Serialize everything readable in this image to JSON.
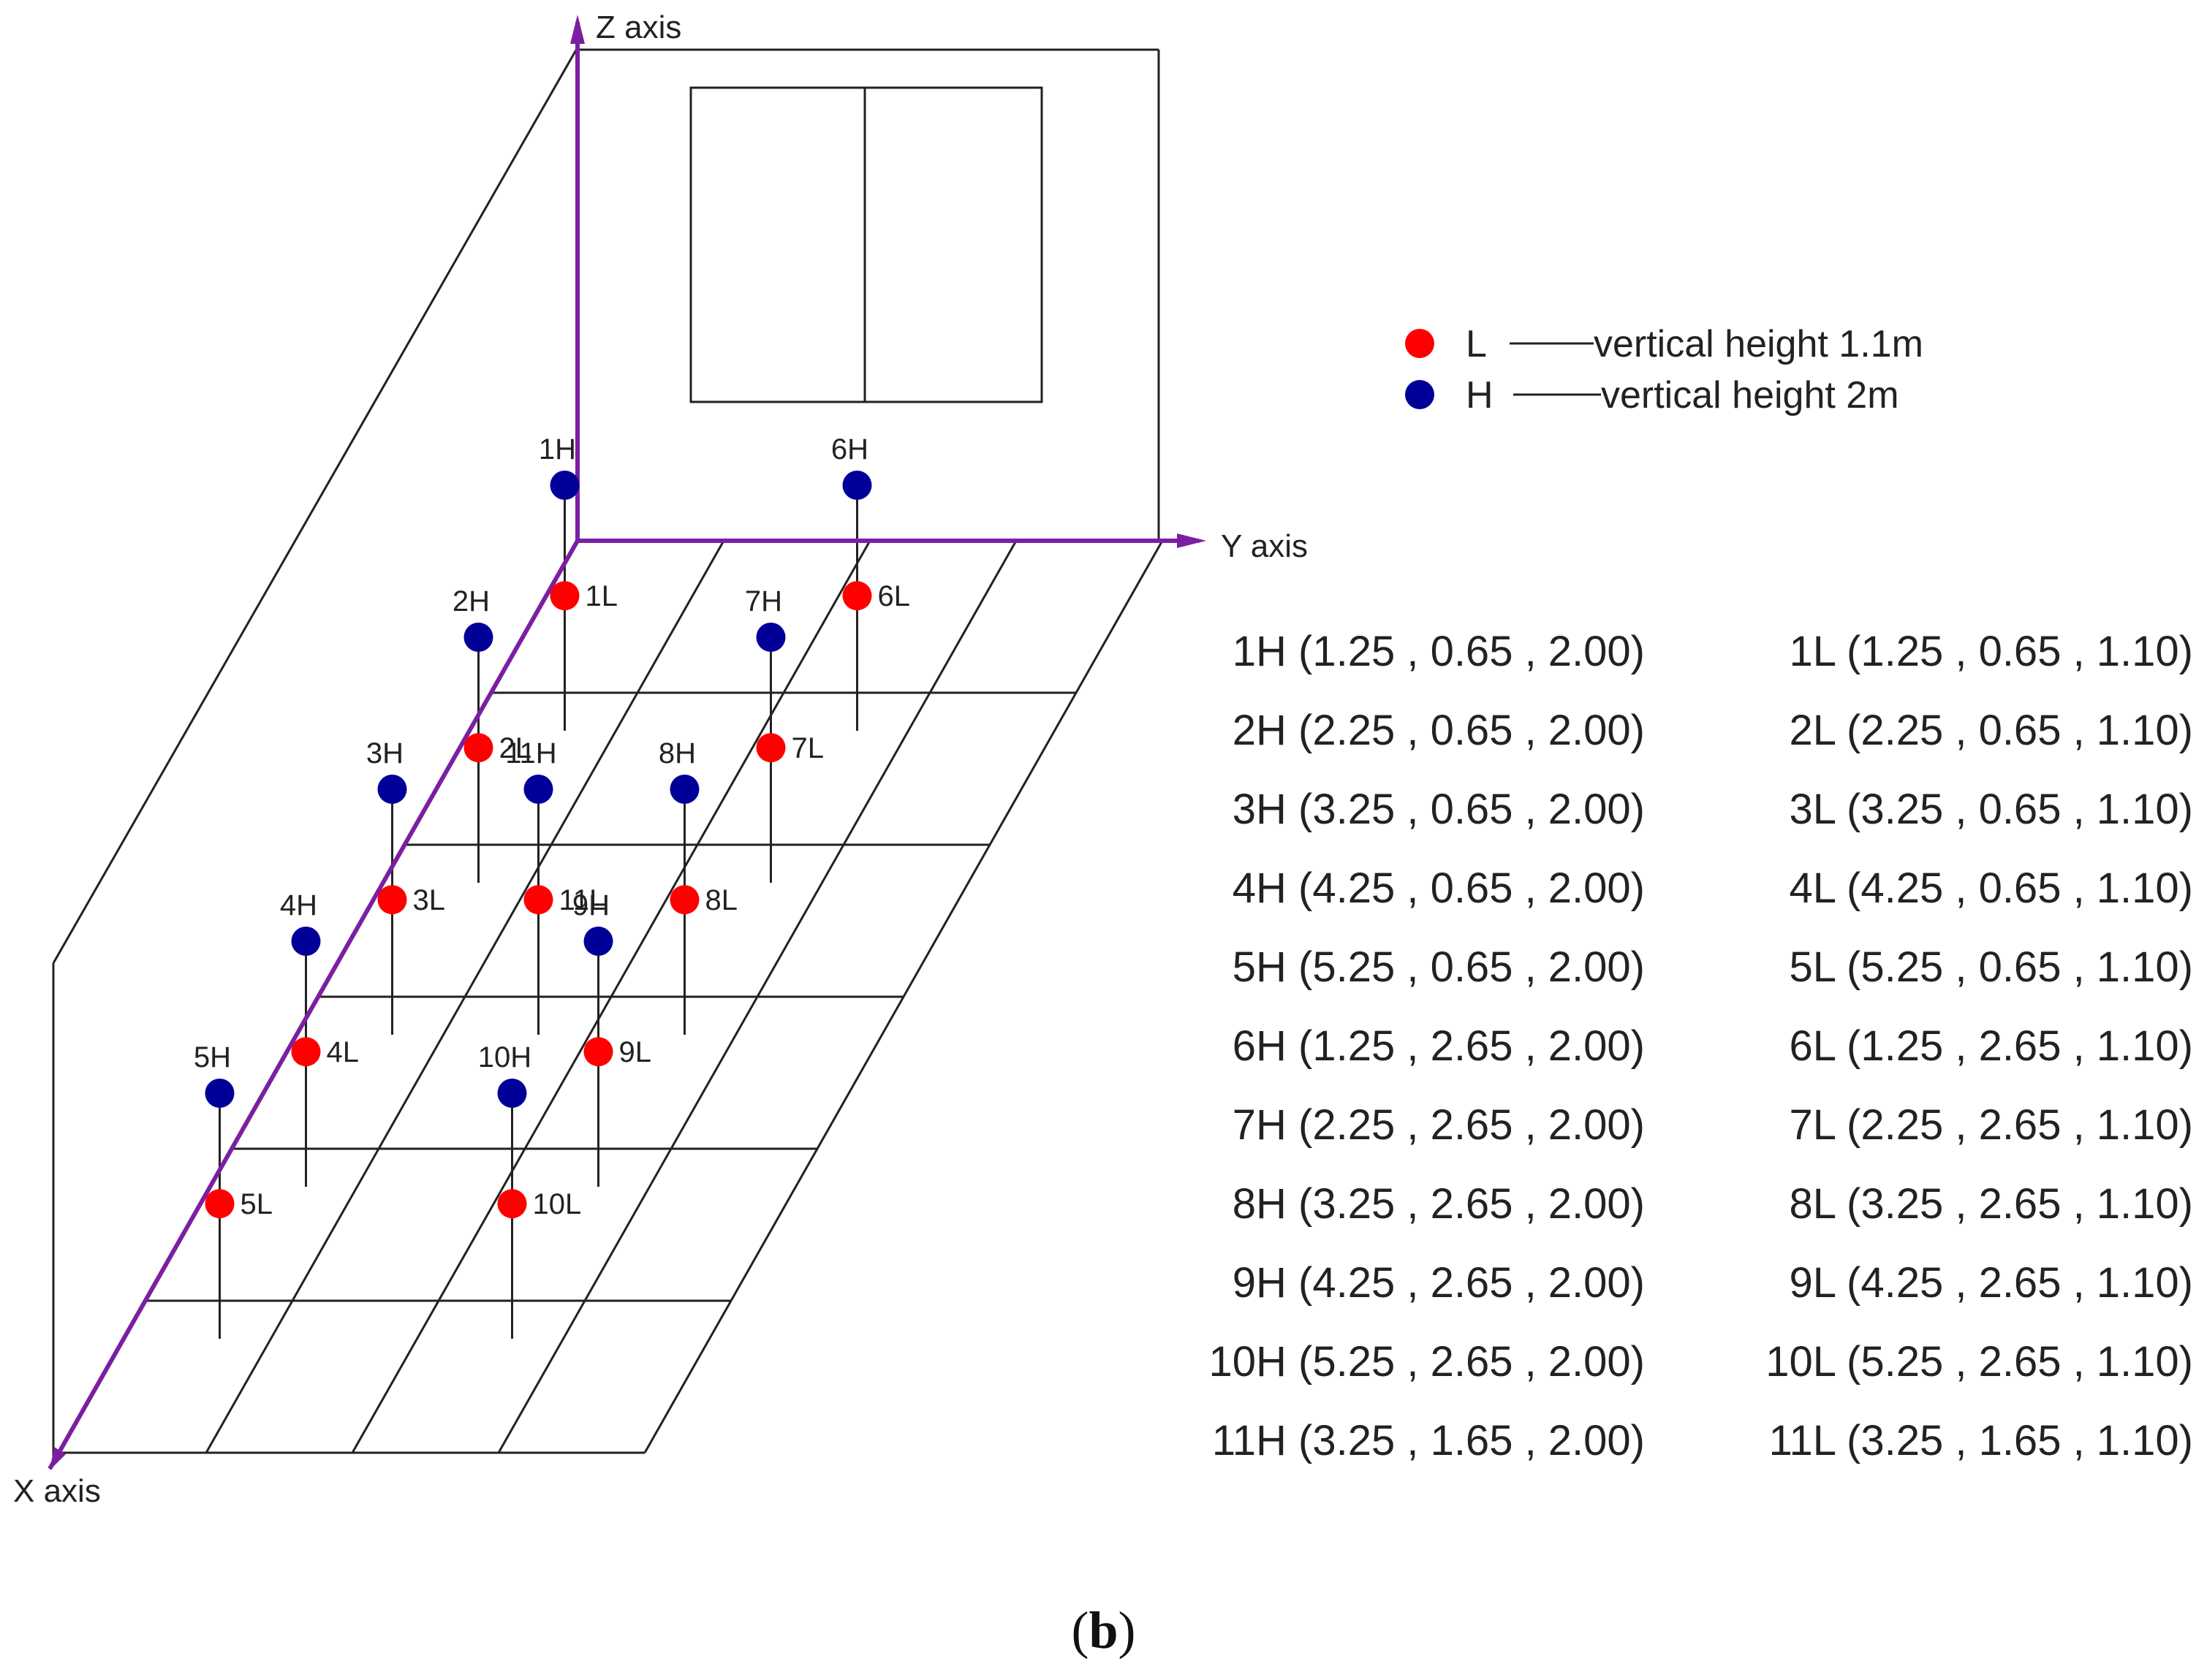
{
  "axes": {
    "x_label": "X axis",
    "y_label": "Y axis",
    "z_label": "Z axis",
    "color": "#7B1FA2"
  },
  "legend": [
    {
      "marker": "L",
      "text": "vertical height 1.1m",
      "color": "#FF0000"
    },
    {
      "marker": "H",
      "text": "vertical height 2m",
      "color": "#000099"
    }
  ],
  "points": [
    {
      "id": "1",
      "x": 1.25,
      "y": 0.65,
      "zH": 2.0,
      "zL": 1.1
    },
    {
      "id": "2",
      "x": 2.25,
      "y": 0.65,
      "zH": 2.0,
      "zL": 1.1
    },
    {
      "id": "3",
      "x": 3.25,
      "y": 0.65,
      "zH": 2.0,
      "zL": 1.1
    },
    {
      "id": "4",
      "x": 4.25,
      "y": 0.65,
      "zH": 2.0,
      "zL": 1.1
    },
    {
      "id": "5",
      "x": 5.25,
      "y": 0.65,
      "zH": 2.0,
      "zL": 1.1
    },
    {
      "id": "6",
      "x": 1.25,
      "y": 2.65,
      "zH": 2.0,
      "zL": 1.1
    },
    {
      "id": "7",
      "x": 2.25,
      "y": 2.65,
      "zH": 2.0,
      "zL": 1.1
    },
    {
      "id": "8",
      "x": 3.25,
      "y": 2.65,
      "zH": 2.0,
      "zL": 1.1
    },
    {
      "id": "9",
      "x": 4.25,
      "y": 2.65,
      "zH": 2.0,
      "zL": 1.1
    },
    {
      "id": "10",
      "x": 5.25,
      "y": 2.65,
      "zH": 2.0,
      "zL": 1.1
    },
    {
      "id": "11",
      "x": 3.25,
      "y": 1.65,
      "zH": 2.0,
      "zL": 1.1
    }
  ],
  "coordinates_table": {
    "H": [
      "1H (1.25 , 0.65 , 2.00)",
      "2H (2.25 , 0.65 , 2.00)",
      "3H (3.25 , 0.65 , 2.00)",
      "4H (4.25 , 0.65 , 2.00)",
      "5H (5.25 , 0.65 , 2.00)",
      "6H (1.25 , 2.65 , 2.00)",
      "7H (2.25 , 2.65 , 2.00)",
      "8H (3.25 , 2.65 , 2.00)",
      "9H (4.25 , 2.65 , 2.00)",
      "10H (5.25 , 2.65 , 2.00)",
      "11H (3.25 , 1.65 , 2.00)"
    ],
    "L": [
      "1L (1.25 , 0.65 , 1.10)",
      "2L (2.25 , 0.65 , 1.10)",
      "3L (3.25 , 0.65 , 1.10)",
      "4L (4.25 , 0.65 , 1.10)",
      "5L (5.25 , 0.65 , 1.10)",
      "6L (1.25 , 2.65 , 1.10)",
      "7L (2.25 , 2.65 , 1.10)",
      "8L (3.25 , 2.65 , 1.10)",
      "9L (4.25 , 2.65 , 1.10)",
      "10L (5.25 , 2.65 , 1.10)",
      "11L (3.25 , 1.65 , 1.10)"
    ]
  },
  "caption": {
    "open": "(",
    "letter": "b",
    "close": ")"
  }
}
